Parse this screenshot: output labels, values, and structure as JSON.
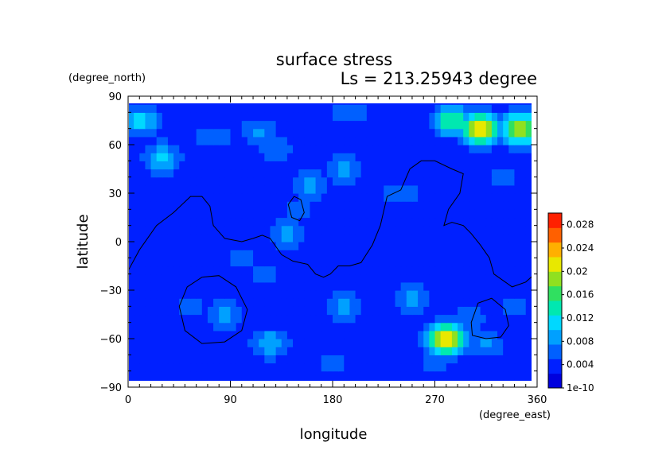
{
  "chart_data": {
    "type": "heatmap",
    "title": "surface stress",
    "subtitle": "Ls = 213.25943 degree",
    "xlabel": "longitude",
    "ylabel": "latitude",
    "x_units": "(degree_east)",
    "y_units": "(degree_north)",
    "xlim": [
      0,
      360
    ],
    "ylim": [
      -90,
      90
    ],
    "x_ticks": [
      "0",
      "90",
      "180",
      "270",
      "360"
    ],
    "y_ticks": [
      "90",
      "60",
      "30",
      "0",
      "-30",
      "-60",
      "-90"
    ],
    "colorbar": {
      "min": 0,
      "max": 0.03,
      "labels": [
        "0.028",
        "0.024",
        "0.02",
        "0.016",
        "0.012",
        "0.008",
        "0.004",
        "1e-10"
      ],
      "label_values": [
        0.028,
        0.024,
        0.02,
        0.016,
        0.012,
        0.008,
        0.004,
        0
      ],
      "colors": [
        "#0000dd",
        "#0020ff",
        "#0060ff",
        "#00a0ff",
        "#00d8ff",
        "#00e8b0",
        "#30e060",
        "#90e020",
        "#e8e800",
        "#ffb000",
        "#ff6000",
        "#ff2000"
      ]
    },
    "background_level": 0.003,
    "hotspots": [
      {
        "lon": 10,
        "lat": 75,
        "value": 0.012
      },
      {
        "lon": 30,
        "lat": 52,
        "value": 0.011
      },
      {
        "lon": 75,
        "lat": 65,
        "value": 0.007
      },
      {
        "lon": 115,
        "lat": 68,
        "value": 0.008
      },
      {
        "lon": 130,
        "lat": 58,
        "value": 0.007
      },
      {
        "lon": 195,
        "lat": 80,
        "value": 0.007
      },
      {
        "lon": 285,
        "lat": 75,
        "value": 0.016
      },
      {
        "lon": 310,
        "lat": 70,
        "value": 0.024
      },
      {
        "lon": 345,
        "lat": 70,
        "value": 0.021
      },
      {
        "lon": 190,
        "lat": 45,
        "value": 0.008
      },
      {
        "lon": 160,
        "lat": 35,
        "value": 0.008
      },
      {
        "lon": 150,
        "lat": 20,
        "value": 0.006
      },
      {
        "lon": 140,
        "lat": 5,
        "value": 0.009
      },
      {
        "lon": 120,
        "lat": -20,
        "value": 0.006
      },
      {
        "lon": 100,
        "lat": -10,
        "value": 0.006
      },
      {
        "lon": 85,
        "lat": -45,
        "value": 0.009
      },
      {
        "lon": 55,
        "lat": -40,
        "value": 0.006
      },
      {
        "lon": 125,
        "lat": -63,
        "value": 0.01
      },
      {
        "lon": 190,
        "lat": -40,
        "value": 0.009
      },
      {
        "lon": 250,
        "lat": -35,
        "value": 0.008
      },
      {
        "lon": 280,
        "lat": -60,
        "value": 0.024
      },
      {
        "lon": 300,
        "lat": -48,
        "value": 0.007
      },
      {
        "lon": 315,
        "lat": -63,
        "value": 0.008
      },
      {
        "lon": 340,
        "lat": -40,
        "value": 0.006
      },
      {
        "lon": 180,
        "lat": -75,
        "value": 0.006
      },
      {
        "lon": 270,
        "lat": -75,
        "value": 0.006
      },
      {
        "lon": 20,
        "lat": -75,
        "value": 0.005
      },
      {
        "lon": 240,
        "lat": 30,
        "value": 0.007
      },
      {
        "lon": 330,
        "lat": 40,
        "value": 0.006
      },
      {
        "lon": 60,
        "lat": 25,
        "value": 0.005
      }
    ],
    "topography_contours": [
      {
        "name": "western-boundary",
        "closed": false,
        "points": [
          [
            0,
            -18
          ],
          [
            10,
            -5
          ],
          [
            25,
            10
          ],
          [
            40,
            18
          ],
          [
            55,
            28
          ],
          [
            65,
            28
          ],
          [
            72,
            22
          ],
          [
            75,
            10
          ],
          [
            85,
            2
          ],
          [
            100,
            0
          ],
          [
            110,
            2
          ],
          [
            118,
            4
          ],
          [
            125,
            2
          ],
          [
            135,
            -8
          ],
          [
            145,
            -12
          ],
          [
            158,
            -14
          ],
          [
            165,
            -20
          ],
          [
            172,
            -22
          ],
          [
            178,
            -20
          ],
          [
            185,
            -15
          ],
          [
            195,
            -15
          ],
          [
            205,
            -13
          ],
          [
            215,
            -2
          ],
          [
            222,
            10
          ],
          [
            228,
            28
          ],
          [
            240,
            32
          ],
          [
            248,
            45
          ],
          [
            258,
            50
          ],
          [
            270,
            50
          ],
          [
            285,
            45
          ],
          [
            295,
            42
          ],
          [
            292,
            30
          ],
          [
            282,
            20
          ],
          [
            278,
            10
          ],
          [
            285,
            12
          ],
          [
            295,
            10
          ],
          [
            302,
            5
          ],
          [
            310,
            -2
          ],
          [
            318,
            -10
          ],
          [
            322,
            -20
          ],
          [
            332,
            -25
          ],
          [
            338,
            -28
          ],
          [
            350,
            -25
          ],
          [
            358,
            -20
          ]
        ]
      },
      {
        "name": "small-basin",
        "closed": true,
        "points": [
          [
            141,
            23
          ],
          [
            146,
            28
          ],
          [
            152,
            26
          ],
          [
            155,
            18
          ],
          [
            151,
            13
          ],
          [
            144,
            15
          ]
        ]
      },
      {
        "name": "hellas-basin",
        "closed": true,
        "points": [
          [
            45,
            -40
          ],
          [
            52,
            -28
          ],
          [
            65,
            -22
          ],
          [
            80,
            -21
          ],
          [
            95,
            -28
          ],
          [
            105,
            -42
          ],
          [
            100,
            -55
          ],
          [
            85,
            -62
          ],
          [
            65,
            -63
          ],
          [
            50,
            -55
          ]
        ]
      },
      {
        "name": "argyre-basin",
        "closed": true,
        "points": [
          [
            302,
            -50
          ],
          [
            308,
            -38
          ],
          [
            320,
            -35
          ],
          [
            332,
            -42
          ],
          [
            335,
            -52
          ],
          [
            328,
            -59
          ],
          [
            315,
            -60
          ],
          [
            303,
            -58
          ]
        ]
      }
    ]
  }
}
